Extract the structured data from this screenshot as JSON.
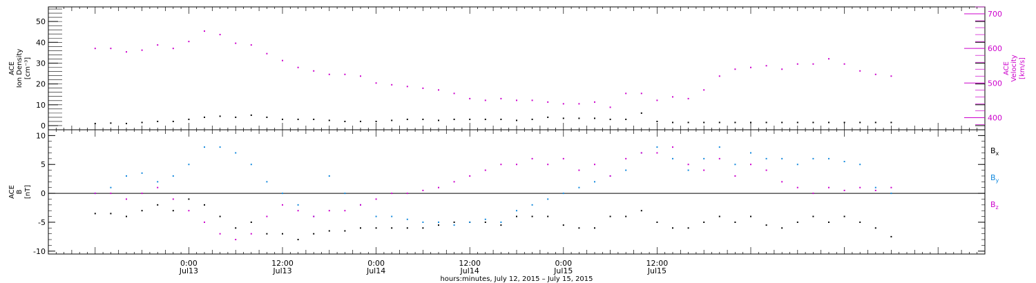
{
  "chart_data": [
    {
      "type": "scatter",
      "panel": "top",
      "ylabel_left_lines": [
        "ACE",
        "Ion Density",
        "[cm⁻³]"
      ],
      "ylabel_right_lines": [
        "ACE",
        "Velocity",
        "[km/s]"
      ],
      "ylim_left": [
        -2,
        57
      ],
      "yticks_left": [
        0,
        10,
        20,
        30,
        40,
        50
      ],
      "ylim_right": [
        365,
        720
      ],
      "yticks_right": [
        400,
        500,
        600,
        700
      ],
      "series": [
        {
          "axis": "left",
          "color": "#000000",
          "x_hours": [
            -12,
            -10,
            -8,
            -6,
            -4,
            -2,
            0,
            2,
            4,
            6,
            8,
            10,
            12,
            14,
            16,
            18,
            20,
            22,
            24,
            26,
            28,
            30,
            32,
            34,
            36,
            38,
            40,
            42,
            44,
            46,
            48,
            50,
            52,
            54,
            56,
            58,
            60,
            62,
            64,
            66,
            68,
            70,
            72,
            74,
            76,
            78,
            80,
            82,
            84,
            86,
            88,
            90
          ],
          "values": [
            1,
            1.2,
            1,
            1.5,
            2,
            2,
            3,
            4,
            4.5,
            4,
            5,
            4,
            3,
            3,
            3,
            2.5,
            2,
            2,
            2,
            2.5,
            3,
            3,
            2.5,
            3,
            3,
            3,
            3,
            2.5,
            3,
            4,
            3.5,
            3.5,
            3.5,
            3,
            3,
            6,
            2,
            1.5,
            1.5,
            1.5,
            1.5,
            1.5,
            1.5,
            1.5,
            1.5,
            1.5,
            1.5,
            1.5,
            1.5,
            1.5,
            1.5,
            1.5
          ]
        },
        {
          "axis": "right",
          "color": "#cc00cc",
          "x_hours": [
            -12,
            -10,
            -8,
            -6,
            -4,
            -2,
            0,
            2,
            4,
            6,
            8,
            10,
            12,
            14,
            16,
            18,
            20,
            22,
            24,
            26,
            28,
            30,
            32,
            34,
            36,
            38,
            40,
            42,
            44,
            46,
            48,
            50,
            52,
            54,
            56,
            58,
            60,
            62,
            64,
            66,
            68,
            70,
            72,
            74,
            76,
            78,
            80,
            82,
            84,
            86,
            88,
            90
          ],
          "values": [
            600,
            600,
            590,
            595,
            610,
            600,
            620,
            650,
            640,
            615,
            610,
            585,
            565,
            545,
            535,
            525,
            525,
            520,
            500,
            495,
            490,
            485,
            480,
            470,
            455,
            450,
            455,
            450,
            450,
            445,
            440,
            440,
            445,
            430,
            470,
            470,
            450,
            460,
            455,
            480,
            520,
            540,
            545,
            550,
            540,
            555,
            555,
            570,
            555,
            535,
            525,
            520
          ]
        }
      ]
    },
    {
      "type": "scatter",
      "panel": "bottom",
      "ylabel_left_lines": [
        "ACE",
        "B",
        "[nT]"
      ],
      "ylim": [
        -10.5,
        11
      ],
      "yticks": [
        10,
        5,
        0,
        -5,
        -10
      ],
      "zero_line": true,
      "legend": [
        "Bx",
        "By",
        "Bz"
      ],
      "series": [
        {
          "name": "Bx",
          "color": "#000000",
          "x_hours": [
            -12,
            -10,
            -8,
            -6,
            -4,
            -2,
            0,
            2,
            4,
            6,
            8,
            10,
            12,
            14,
            16,
            18,
            20,
            22,
            24,
            26,
            28,
            30,
            32,
            34,
            36,
            38,
            40,
            42,
            44,
            46,
            48,
            50,
            52,
            54,
            56,
            58,
            60,
            62,
            64,
            66,
            68,
            70,
            72,
            74,
            76,
            78,
            80,
            82,
            84,
            86,
            88,
            90
          ],
          "values": [
            -3.5,
            -3.5,
            -4,
            -3,
            -2,
            -3,
            -1,
            -2,
            -4,
            -6,
            -5,
            -7,
            -7,
            -8,
            -7,
            -6.5,
            -6.5,
            -6,
            -6,
            -6,
            -6,
            -6,
            -5.5,
            -5,
            -5,
            -5,
            -5.5,
            -4,
            -4,
            -4,
            -5.5,
            -6,
            -6,
            -4,
            -4,
            -3,
            -5,
            -6,
            -6,
            -5,
            -4,
            -5,
            -4,
            -5.5,
            -6,
            -5,
            -4,
            -5,
            -4,
            -5,
            -6,
            -7.5
          ]
        },
        {
          "name": "By",
          "color": "#1188dd",
          "x_hours": [
            -12,
            -10,
            -8,
            -6,
            -4,
            -2,
            0,
            2,
            4,
            6,
            8,
            10,
            12,
            14,
            16,
            18,
            20,
            22,
            24,
            26,
            28,
            30,
            32,
            34,
            36,
            38,
            40,
            42,
            44,
            46,
            48,
            50,
            52,
            54,
            56,
            58,
            60,
            62,
            64,
            66,
            68,
            70,
            72,
            74,
            76,
            78,
            80,
            82,
            84,
            86,
            88,
            90
          ],
          "values": [
            0,
            1,
            3,
            3.5,
            2,
            3,
            5,
            8,
            8,
            7,
            5,
            2,
            0,
            -2,
            -4,
            3,
            0,
            -2,
            -4,
            -4,
            -4.5,
            -5,
            -5,
            -5.5,
            -5,
            -4.5,
            -5,
            -3,
            -2,
            -1,
            0,
            1,
            2,
            3,
            4,
            7,
            8,
            6,
            4,
            6,
            8,
            5,
            7,
            6,
            6,
            5,
            6,
            6,
            5.5,
            5,
            1,
            0
          ]
        },
        {
          "name": "Bz",
          "color": "#cc00cc",
          "x_hours": [
            -12,
            -10,
            -8,
            -6,
            -4,
            -2,
            0,
            2,
            4,
            6,
            8,
            10,
            12,
            14,
            16,
            18,
            20,
            22,
            24,
            26,
            28,
            30,
            32,
            34,
            36,
            38,
            40,
            42,
            44,
            46,
            48,
            50,
            52,
            54,
            56,
            58,
            60,
            62,
            64,
            66,
            68,
            70,
            72,
            74,
            76,
            78,
            80,
            82,
            84,
            86,
            88,
            90
          ],
          "values": [
            0,
            0,
            -1,
            0,
            1,
            -1,
            -3,
            -5,
            -7,
            -8,
            -7,
            -4,
            -2,
            -3,
            -4,
            -3,
            -3,
            -2,
            -1,
            0,
            0,
            0.5,
            1,
            2,
            3,
            4,
            5,
            5,
            6,
            5,
            6,
            4,
            5,
            3,
            6,
            7,
            7,
            8,
            5,
            4,
            6,
            3,
            5,
            4,
            2,
            1,
            0,
            1,
            0.5,
            1,
            0.5,
            1
          ]
        }
      ]
    }
  ],
  "x_axis": {
    "xlim_hours": [
      -18,
      102
    ],
    "ticks": [
      {
        "hour": 0,
        "time": "0:00",
        "date": "Jul13"
      },
      {
        "hour": 12,
        "time": "12:00",
        "date": "Jul13"
      },
      {
        "hour": 24,
        "time": "0:00",
        "date": "Jul14"
      },
      {
        "hour": 36,
        "time": "12:00",
        "date": "Jul14"
      },
      {
        "hour": 48,
        "time": "0:00",
        "date": "Jul15"
      },
      {
        "hour": 60,
        "time": "12:00",
        "date": "Jul15"
      }
    ],
    "xlabel": "hours:minutes, July 12, 2015 – July 15, 2015"
  },
  "legend": {
    "bx": {
      "sym": "B",
      "sub": "x"
    },
    "by": {
      "sym": "B",
      "sub": "y"
    },
    "bz": {
      "sym": "B",
      "sub": "z"
    }
  },
  "colors": {
    "black": "#000000",
    "magenta": "#cc00cc",
    "blue": "#1188dd"
  }
}
